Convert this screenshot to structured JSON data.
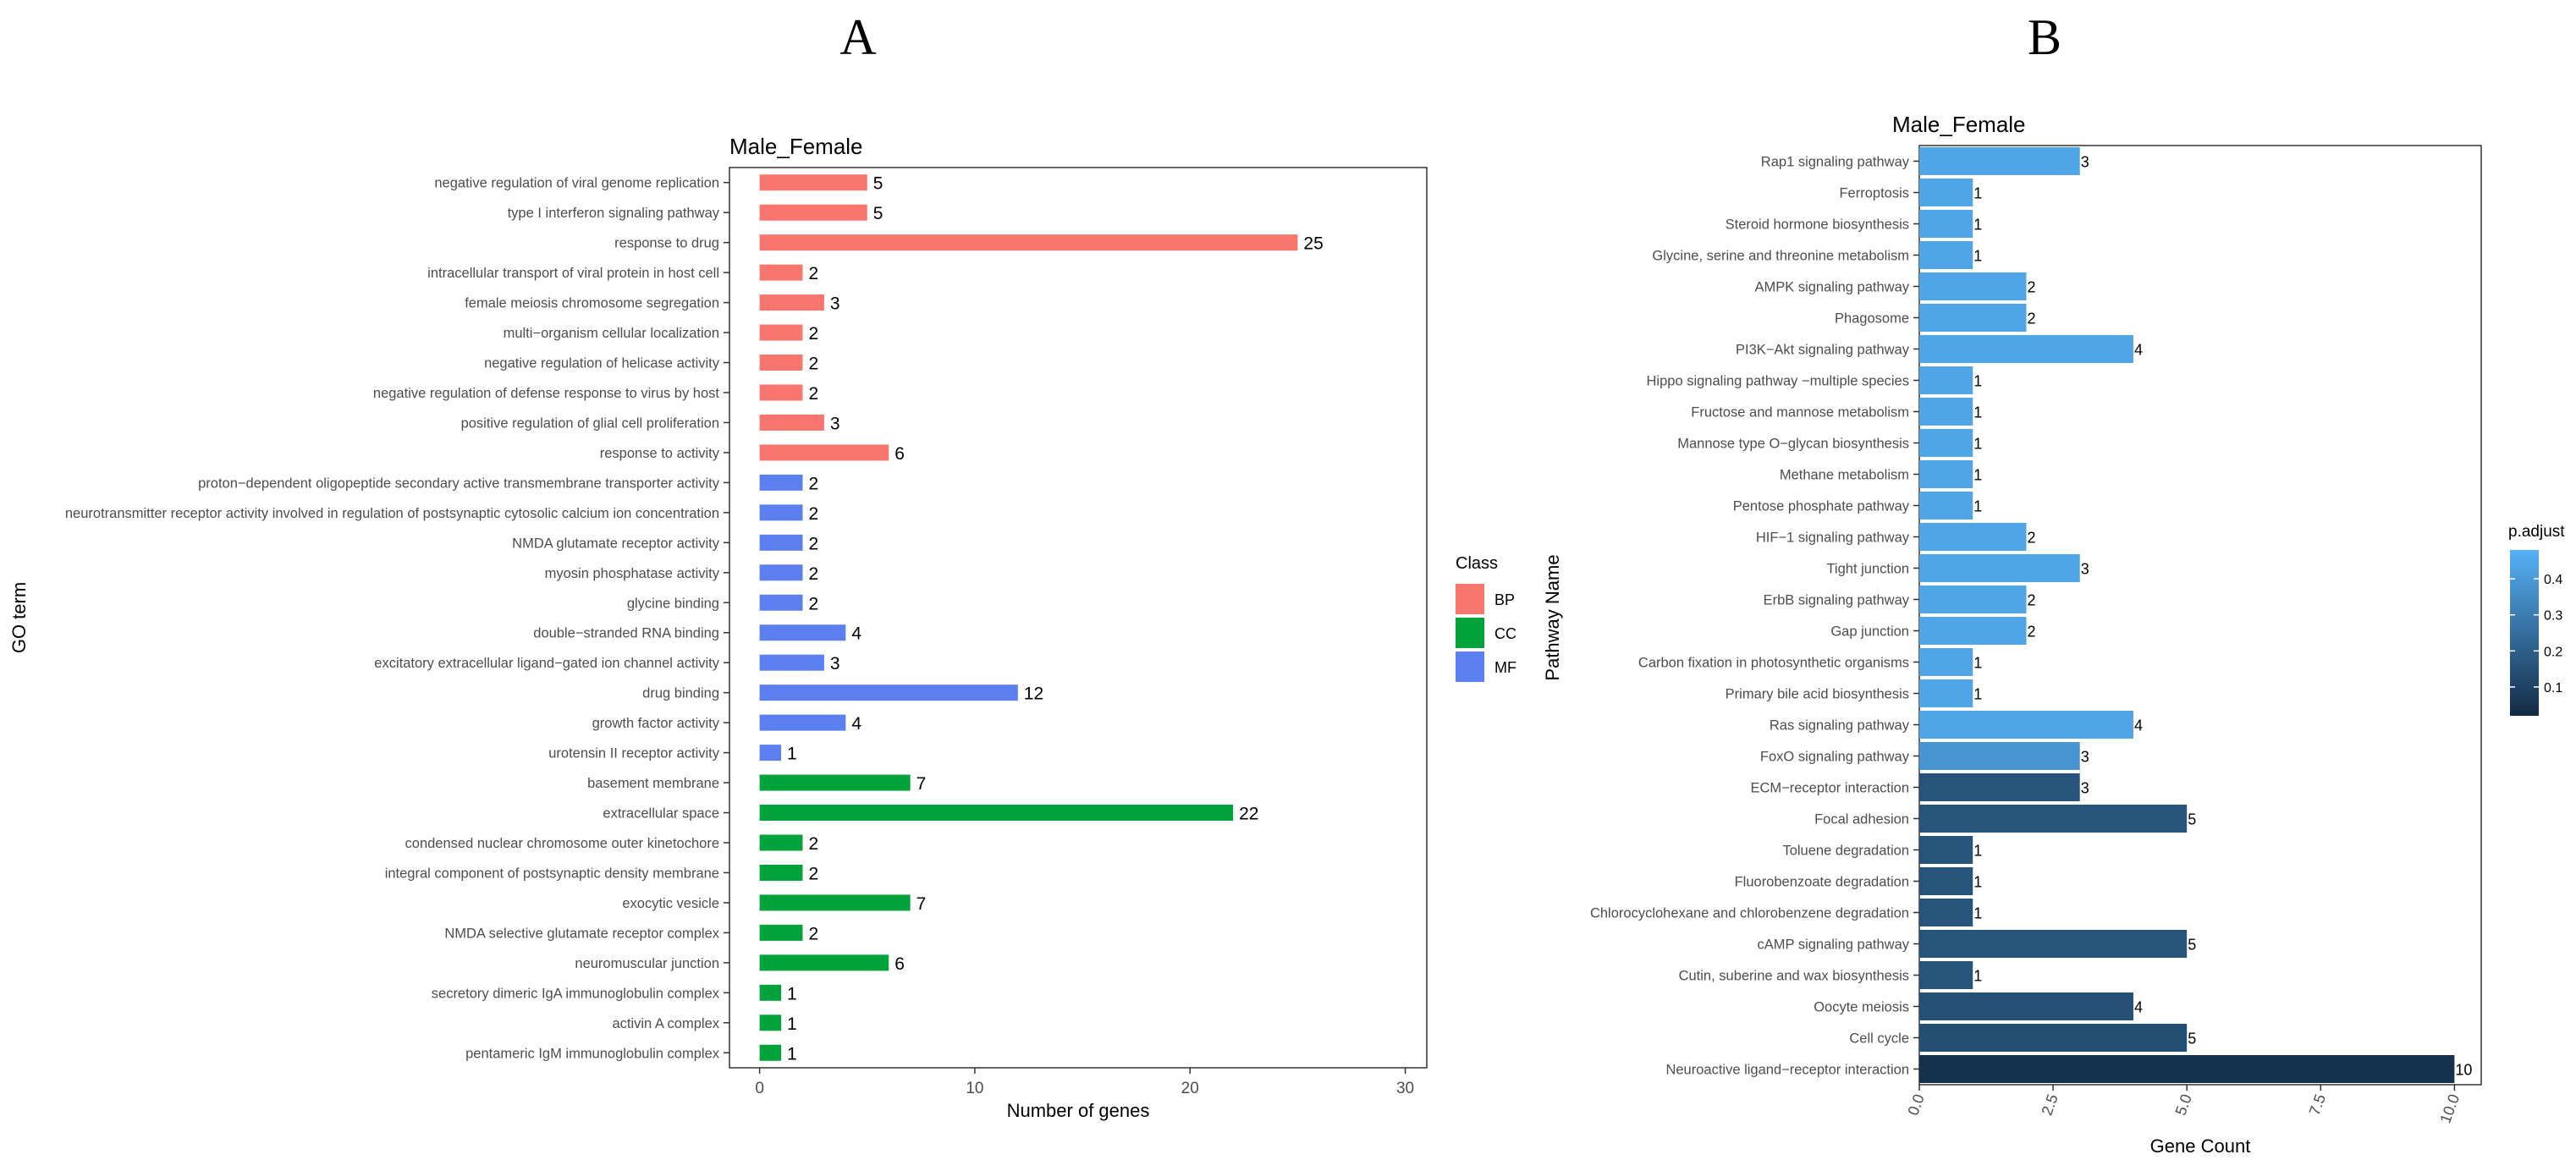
{
  "colors": {
    "BP": "#F8766D",
    "CC": "#00A33A",
    "MF": "#5B7FEF",
    "grad_low": "#132B43",
    "grad_high": "#56B1F7",
    "frame": "#333333"
  },
  "chart_data": [
    {
      "id": "A",
      "type": "bar",
      "orientation": "horizontal",
      "panel_label": "A",
      "title": "Male_Female",
      "xlabel": "Number of genes",
      "ylabel": "GO term",
      "xlim": [
        -1.4,
        31
      ],
      "xticks": [
        "0",
        "10",
        "20",
        "30"
      ],
      "xtick_values": [
        0,
        10,
        20,
        30
      ],
      "legend": {
        "title": "Class",
        "position": "right",
        "entries": [
          "BP",
          "CC",
          "MF"
        ]
      },
      "categories": [
        "negative regulation of viral genome replication",
        "type I interferon signaling pathway",
        "response to drug",
        "intracellular transport of viral protein in host cell",
        "female meiosis chromosome segregation",
        "multi−organism cellular localization",
        "negative regulation of helicase activity",
        "negative regulation of defense response to virus by host",
        "positive regulation of glial cell proliferation",
        "response to activity",
        "proton−dependent oligopeptide secondary active transmembrane transporter activity",
        "neurotransmitter receptor activity involved in regulation of postsynaptic cytosolic calcium ion concentration",
        "NMDA glutamate receptor activity",
        "myosin phosphatase activity",
        "glycine binding",
        "double−stranded RNA binding",
        "excitatory extracellular ligand−gated ion channel activity",
        "drug binding",
        "growth factor activity",
        "urotensin II receptor activity",
        "basement membrane",
        "extracellular space",
        "condensed nuclear chromosome outer kinetochore",
        "integral component of postsynaptic density membrane",
        "exocytic vesicle",
        "NMDA selective glutamate receptor complex",
        "neuromuscular junction",
        "secretory dimeric IgA immunoglobulin complex",
        "activin A complex",
        "pentameric IgM immunoglobulin complex"
      ],
      "values": [
        5,
        5,
        25,
        2,
        3,
        2,
        2,
        2,
        3,
        6,
        2,
        2,
        2,
        2,
        2,
        4,
        3,
        12,
        4,
        1,
        7,
        22,
        2,
        2,
        7,
        2,
        6,
        1,
        1,
        1
      ],
      "labels": [
        "5",
        "5",
        "25",
        "2",
        "3",
        "2",
        "2",
        "2",
        "3",
        "6",
        "2",
        "2",
        "2",
        "2",
        "2",
        "4",
        "3",
        "12",
        "4",
        "1",
        "7",
        "22",
        "2",
        "2",
        "7",
        "2",
        "6",
        "1",
        "1",
        "1"
      ],
      "classes": [
        "BP",
        "BP",
        "BP",
        "BP",
        "BP",
        "BP",
        "BP",
        "BP",
        "BP",
        "BP",
        "MF",
        "MF",
        "MF",
        "MF",
        "MF",
        "MF",
        "MF",
        "MF",
        "MF",
        "MF",
        "CC",
        "CC",
        "CC",
        "CC",
        "CC",
        "CC",
        "CC",
        "CC",
        "CC",
        "CC"
      ]
    },
    {
      "id": "B",
      "type": "bar",
      "orientation": "horizontal",
      "panel_label": "B",
      "title": "Male_Female",
      "xlabel": "Gene Count",
      "ylabel": "Pathway Name",
      "xlim": [
        0,
        10.5
      ],
      "xticks": [
        "0.0",
        "2.5",
        "5.0",
        "7.5",
        "10.0"
      ],
      "xtick_values": [
        0,
        2.5,
        5,
        7.5,
        10
      ],
      "legend": {
        "title": "p.adjust",
        "position": "right",
        "ticks": [
          "0.4",
          "0.3",
          "0.2",
          "0.1"
        ],
        "tick_values": [
          0.4,
          0.3,
          0.2,
          0.1
        ],
        "range": [
          0.02,
          0.48
        ]
      },
      "categories": [
        "Rap1 signaling pathway",
        "Ferroptosis",
        "Steroid hormone biosynthesis",
        "Glycine, serine and threonine metabolism",
        "AMPK signaling pathway",
        "Phagosome",
        "PI3K−Akt signaling pathway",
        "Hippo signaling pathway −multiple species",
        "Fructose and mannose metabolism",
        "Mannose type O−glycan biosynthesis",
        "Methane metabolism",
        "Pentose phosphate pathway",
        "HIF−1 signaling pathway",
        "Tight junction",
        "ErbB signaling pathway",
        "Gap junction",
        "Carbon fixation in photosynthetic organisms",
        "Primary bile acid biosynthesis",
        "Ras signaling pathway",
        "FoxO signaling pathway",
        "ECM−receptor interaction",
        "Focal adhesion",
        "Toluene degradation",
        "Fluorobenzoate degradation",
        "Chlorocyclohexane and chlorobenzene degradation",
        "cAMP signaling pathway",
        "Cutin, suberine and wax biosynthesis",
        "Oocyte meiosis",
        "Cell cycle",
        "Neuroactive ligand−receptor interaction"
      ],
      "values": [
        3,
        1,
        1,
        1,
        2,
        2,
        4,
        1,
        1,
        1,
        1,
        1,
        2,
        3,
        2,
        2,
        1,
        1,
        4,
        3,
        3,
        5,
        1,
        1,
        1,
        5,
        1,
        4,
        5,
        10
      ],
      "labels": [
        "3",
        "1",
        "1",
        "1",
        "2",
        "2",
        "4",
        "1",
        "1",
        "1",
        "1",
        "1",
        "2",
        "3",
        "2",
        "2",
        "1",
        "1",
        "4",
        "3",
        "3",
        "5",
        "1",
        "1",
        "1",
        "5",
        "1",
        "4",
        "5",
        "10"
      ],
      "p_adjust": [
        0.44,
        0.44,
        0.44,
        0.44,
        0.44,
        0.44,
        0.44,
        0.44,
        0.44,
        0.44,
        0.44,
        0.44,
        0.44,
        0.44,
        0.44,
        0.44,
        0.44,
        0.44,
        0.44,
        0.38,
        0.16,
        0.16,
        0.16,
        0.16,
        0.16,
        0.16,
        0.16,
        0.15,
        0.14,
        0.04
      ]
    }
  ]
}
